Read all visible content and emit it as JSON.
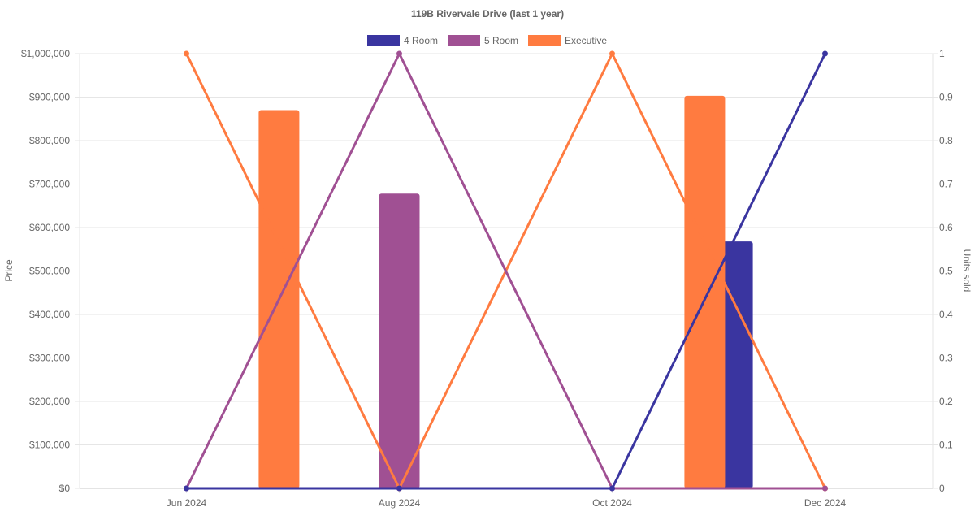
{
  "chart_data": {
    "type": "bar",
    "title": "119B Rivervale Drive (last 1 year)",
    "categories": [
      "Jun 2024",
      "Aug 2024",
      "Oct 2024",
      "Dec 2024"
    ],
    "ylabel_left": "Price",
    "ylabel_right": "Units sold",
    "ylim_left": [
      0,
      1000000
    ],
    "ylim_right": [
      0,
      1
    ],
    "left_ticks": [
      "$0",
      "$100,000",
      "$200,000",
      "$300,000",
      "$400,000",
      "$500,000",
      "$600,000",
      "$700,000",
      "$800,000",
      "$900,000",
      "$1,000,000"
    ],
    "right_ticks": [
      "0",
      "0.1",
      "0.2",
      "0.3",
      "0.4",
      "0.5",
      "0.6",
      "0.7",
      "0.8",
      "0.9",
      "1"
    ],
    "grid": true,
    "legend_position": "top-center",
    "series": [
      {
        "name": "4 Room",
        "color": "#3a35a0",
        "price": [
          null,
          null,
          null,
          568000
        ],
        "units": [
          0,
          0,
          0,
          1
        ]
      },
      {
        "name": "5 Room",
        "color": "#a05093",
        "price": [
          null,
          678000,
          null,
          null
        ],
        "units": [
          0,
          1,
          0,
          0
        ]
      },
      {
        "name": "Executive",
        "color": "#ff7b40",
        "price": [
          870000,
          null,
          903000,
          null
        ],
        "units": [
          1,
          0,
          1,
          0
        ]
      }
    ]
  }
}
